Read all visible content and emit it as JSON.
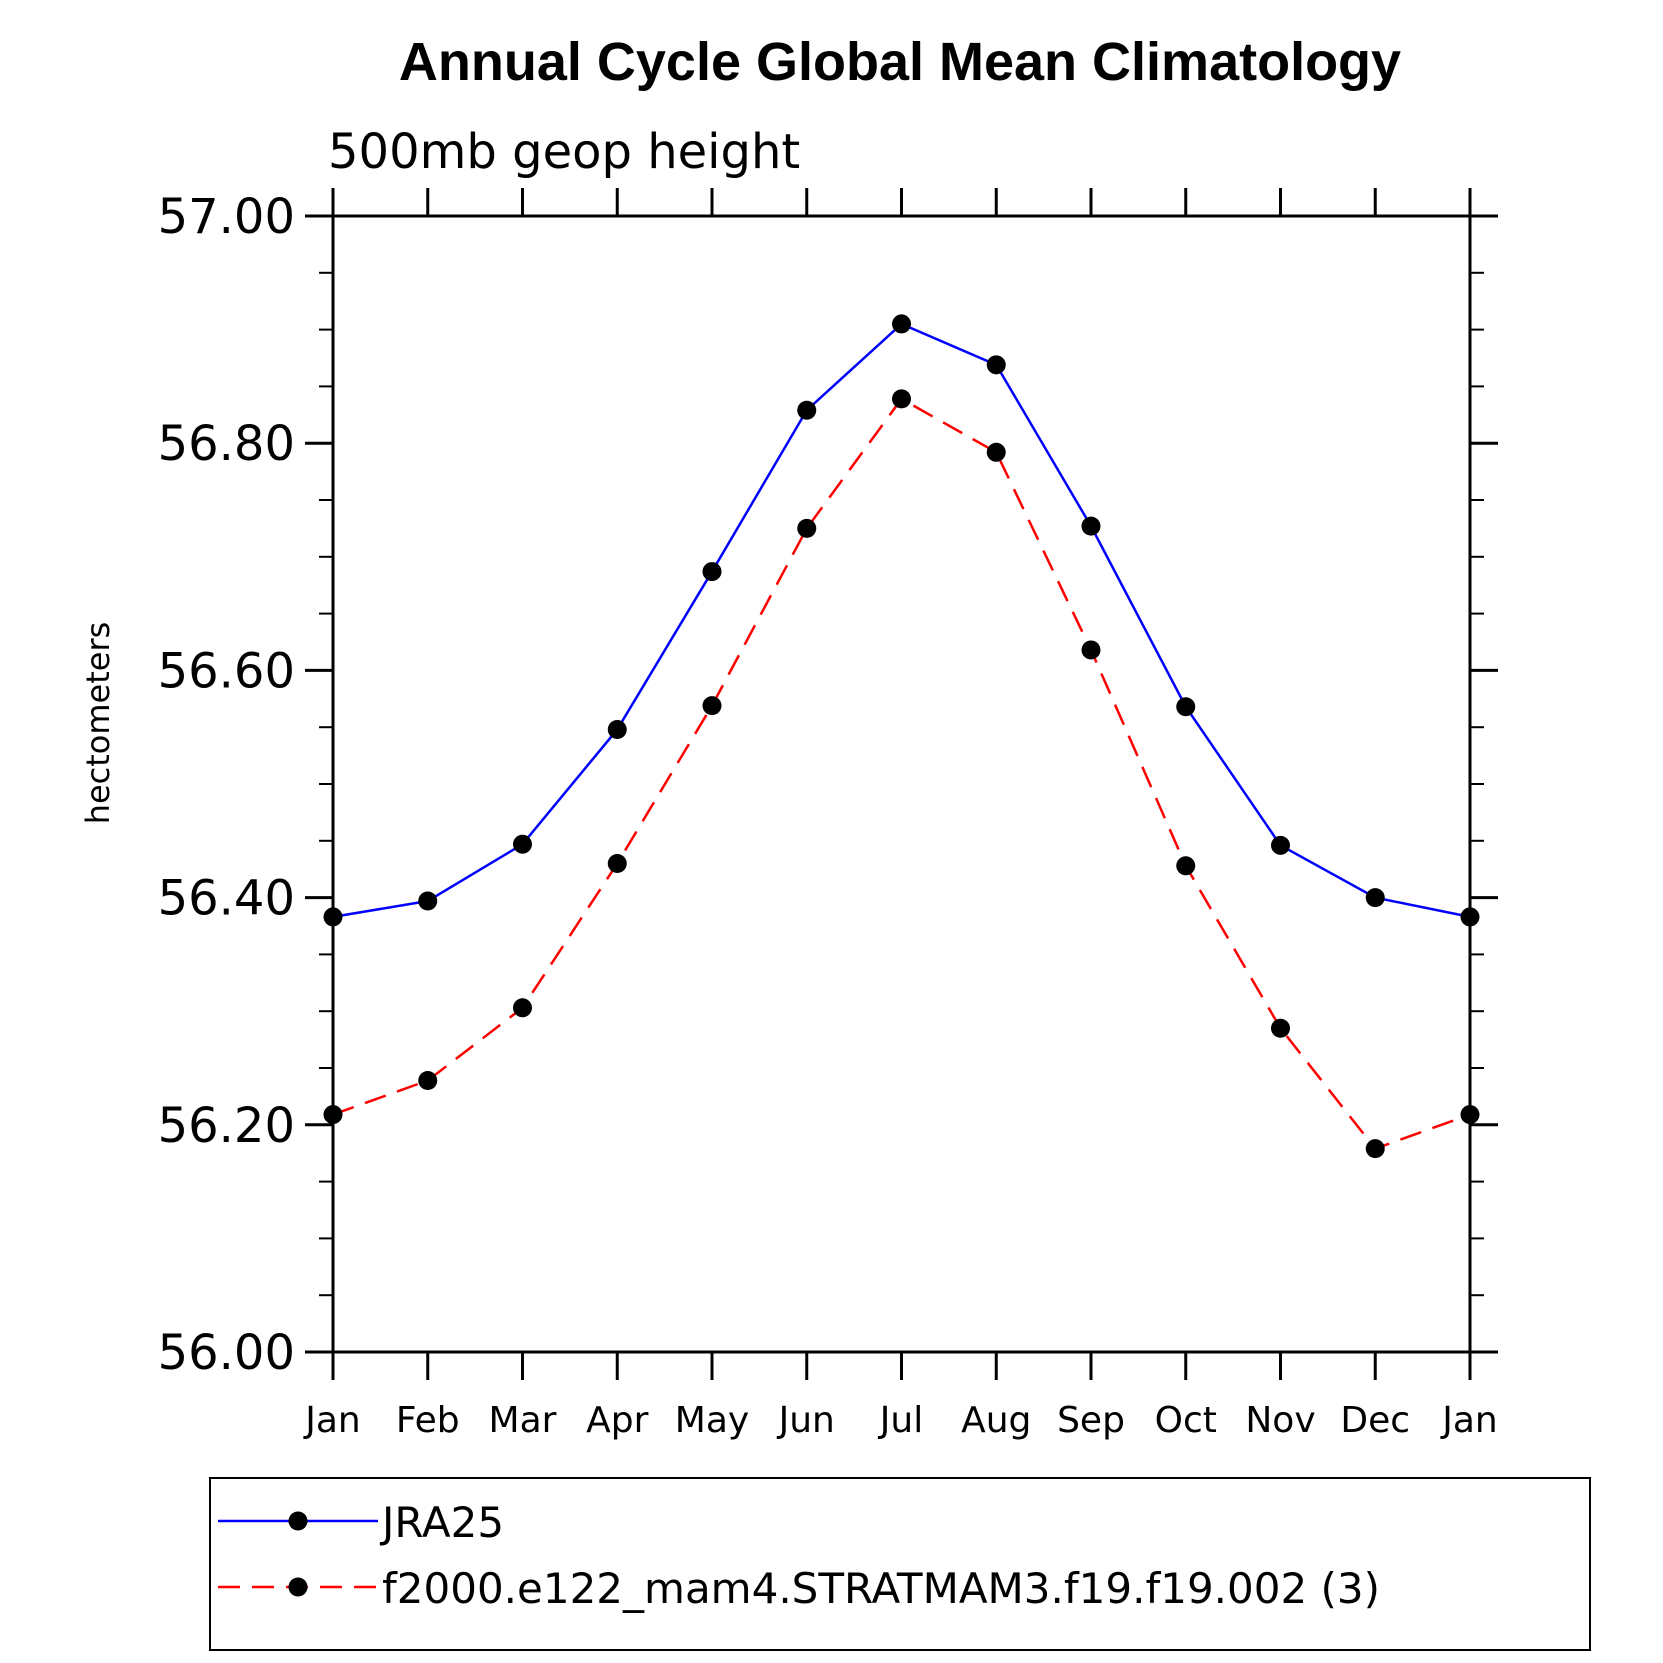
{
  "chart_data": {
    "type": "line",
    "title": "Annual Cycle Global Mean Climatology",
    "subtitle": "500mb geop height",
    "ylabel": "hectometers",
    "xlabel": "",
    "categories": [
      "Jan",
      "Feb",
      "Mar",
      "Apr",
      "May",
      "Jun",
      "Jul",
      "Aug",
      "Sep",
      "Oct",
      "Nov",
      "Dec",
      "Jan"
    ],
    "ylim": [
      56.0,
      57.0
    ],
    "yticks": [
      "56.00",
      "56.20",
      "56.40",
      "56.60",
      "56.80",
      "57.00"
    ],
    "grid": false,
    "legend_position": "bottom",
    "series": [
      {
        "name": "JRA25",
        "color": "#0000ff",
        "line_style": "solid",
        "marker": "filled-circle",
        "values": [
          56.383,
          56.397,
          56.447,
          56.548,
          56.687,
          56.829,
          56.905,
          56.869,
          56.727,
          56.568,
          56.446,
          56.4,
          56.383
        ]
      },
      {
        "name": "f2000.e122_mam4.STRATMAM3.f19.f19.002 (3)",
        "color": "#ff0000",
        "line_style": "dashed",
        "marker": "filled-circle",
        "values": [
          56.209,
          56.239,
          56.303,
          56.43,
          56.569,
          56.725,
          56.839,
          56.792,
          56.618,
          56.428,
          56.285,
          56.179,
          56.209
        ]
      }
    ]
  }
}
